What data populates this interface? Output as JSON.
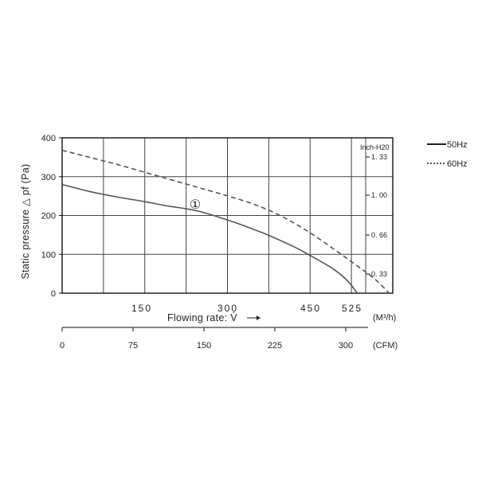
{
  "chart_data": {
    "type": "line",
    "ylabel": "Static pressure △ pf (Pa)",
    "y_ticks": [
      "0",
      "100",
      "200",
      "300",
      "400"
    ],
    "ylim": [
      0,
      400
    ],
    "x_primary_ticks": [
      "150",
      "300",
      "450",
      "525"
    ],
    "x_primary_unit": "(M³/h)",
    "x_secondary_ticks": [
      "0",
      "75",
      "150",
      "225",
      "300"
    ],
    "x_secondary_unit": "(CFM)",
    "xlabel": "Flowing rate: V̇",
    "right_axis_title": "Inch-H20",
    "right_ticks": [
      "1. 33",
      "1. 00",
      "0. 66",
      "0. 33"
    ],
    "curve_marker": "①",
    "grid": true,
    "legend_position": "right",
    "series": [
      {
        "name": "50Hz",
        "style": "solid",
        "color": "#555555",
        "x_cfm": [
          0,
          30,
          60,
          90,
          115,
          140,
          160,
          180,
          200,
          220,
          240,
          260,
          280,
          300,
          315,
          325
        ],
        "y_pa": [
          280,
          262,
          248,
          236,
          225,
          216,
          205,
          190,
          174,
          156,
          136,
          114,
          88,
          60,
          30,
          0
        ]
      },
      {
        "name": "60Hz",
        "style": "dashed",
        "color": "#555555",
        "x_cfm": [
          0,
          30,
          60,
          90,
          120,
          150,
          180,
          210,
          240,
          270,
          300,
          325,
          345,
          360
        ],
        "y_pa": [
          368,
          350,
          332,
          312,
          292,
          272,
          252,
          230,
          200,
          160,
          112,
          70,
          35,
          0
        ]
      }
    ]
  }
}
